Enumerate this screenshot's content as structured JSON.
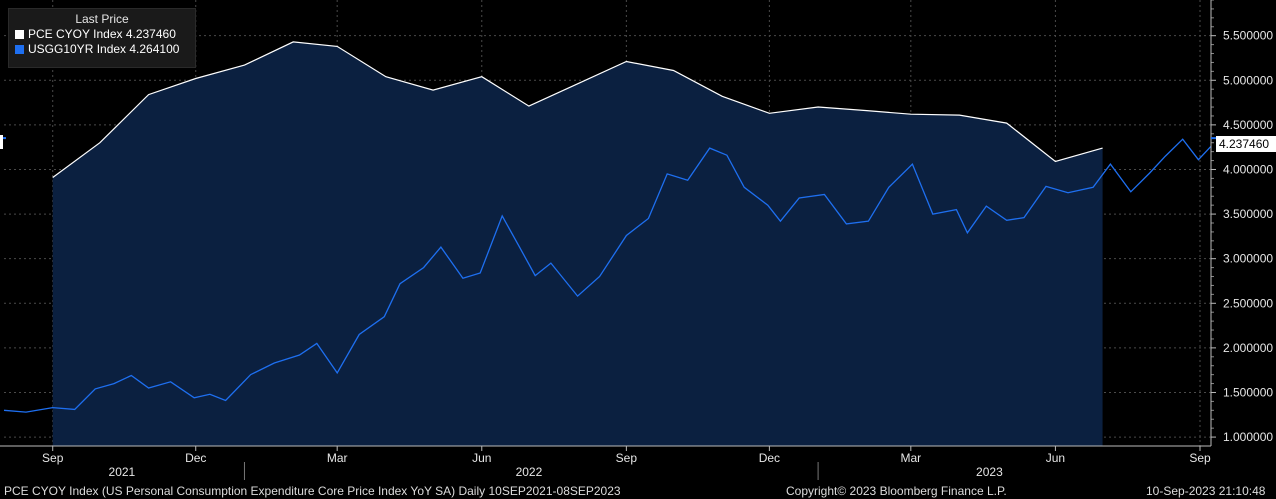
{
  "legend": {
    "title": "Last Price",
    "series": [
      {
        "label": "PCE CYOY Index  4.237460",
        "color": "#ffffff"
      },
      {
        "label": "USGG10YR Index  4.264100",
        "color": "#1e6ff0"
      }
    ]
  },
  "last_value_label": "4.237460",
  "footer": {
    "description": "PCE CYOY Index (US Personal Consumption Expenditure Core Price Index YoY SA)  Daily 10SEP2021-08SEP2023",
    "copyright": "Copyright© 2023 Bloomberg Finance L.P.",
    "timestamp": "10-Sep-2023 21:10:48"
  },
  "chart_data": {
    "type": "area",
    "xlim": [
      "2021-08-01",
      "2023-09-08"
    ],
    "ylim": [
      0.9,
      5.9
    ],
    "grid": true,
    "y_ticks": [
      1.0,
      1.5,
      2.0,
      2.5,
      3.0,
      3.5,
      4.0,
      4.5,
      5.0,
      5.5
    ],
    "y_tick_labels": [
      "1.000000",
      "1.500000",
      "2.000000",
      "2.500000",
      "3.000000",
      "3.500000",
      "4.000000",
      "4.500000",
      "5.000000",
      "5.500000"
    ],
    "month_ticks": [
      {
        "date": "2021-09-01",
        "label": "Sep"
      },
      {
        "date": "2021-12-01",
        "label": "Dec"
      },
      {
        "date": "2022-03-01",
        "label": "Mar"
      },
      {
        "date": "2022-06-01",
        "label": "Jun"
      },
      {
        "date": "2022-09-01",
        "label": "Sep"
      },
      {
        "date": "2022-12-01",
        "label": "Dec"
      },
      {
        "date": "2023-03-01",
        "label": "Mar"
      },
      {
        "date": "2023-06-01",
        "label": "Jun"
      },
      {
        "date": "2023-09-01",
        "label": "Sep"
      }
    ],
    "year_labels": [
      {
        "date": "2021-10-15",
        "label": "2021"
      },
      {
        "date": "2022-07-01",
        "label": "2022"
      },
      {
        "date": "2023-04-20",
        "label": "2023"
      }
    ],
    "year_separators": [
      "2022-01-01",
      "2023-01-01"
    ],
    "series": [
      {
        "name": "PCE CYOY Index",
        "color": "#ffffff",
        "fill": "#0b2040",
        "points": [
          [
            "2021-09-01",
            3.91
          ],
          [
            "2021-10-01",
            4.3
          ],
          [
            "2021-11-01",
            4.84
          ],
          [
            "2021-12-01",
            5.02
          ],
          [
            "2022-01-01",
            5.17
          ],
          [
            "2022-02-01",
            5.43
          ],
          [
            "2022-03-01",
            5.38
          ],
          [
            "2022-04-01",
            5.04
          ],
          [
            "2022-05-01",
            4.89
          ],
          [
            "2022-06-01",
            5.04
          ],
          [
            "2022-07-01",
            4.71
          ],
          [
            "2022-08-01",
            4.96
          ],
          [
            "2022-09-01",
            5.21
          ],
          [
            "2022-10-01",
            5.11
          ],
          [
            "2022-11-01",
            4.82
          ],
          [
            "2022-12-01",
            4.63
          ],
          [
            "2023-01-01",
            4.7
          ],
          [
            "2023-02-01",
            4.66
          ],
          [
            "2023-03-01",
            4.62
          ],
          [
            "2023-04-01",
            4.61
          ],
          [
            "2023-05-01",
            4.52
          ],
          [
            "2023-06-01",
            4.09
          ],
          [
            "2023-07-01",
            4.24
          ]
        ]
      },
      {
        "name": "USGG10YR Index",
        "color": "#1e6ff0",
        "points": [
          [
            "2021-08-01",
            1.3
          ],
          [
            "2021-08-15",
            1.28
          ],
          [
            "2021-09-01",
            1.33
          ],
          [
            "2021-09-15",
            1.31
          ],
          [
            "2021-09-28",
            1.54
          ],
          [
            "2021-10-10",
            1.6
          ],
          [
            "2021-10-21",
            1.69
          ],
          [
            "2021-11-01",
            1.55
          ],
          [
            "2021-11-15",
            1.62
          ],
          [
            "2021-11-30",
            1.44
          ],
          [
            "2021-12-10",
            1.48
          ],
          [
            "2021-12-20",
            1.41
          ],
          [
            "2022-01-05",
            1.7
          ],
          [
            "2022-01-20",
            1.83
          ],
          [
            "2022-02-05",
            1.92
          ],
          [
            "2022-02-16",
            2.05
          ],
          [
            "2022-03-01",
            1.72
          ],
          [
            "2022-03-15",
            2.15
          ],
          [
            "2022-03-31",
            2.35
          ],
          [
            "2022-04-10",
            2.72
          ],
          [
            "2022-04-25",
            2.9
          ],
          [
            "2022-05-06",
            3.13
          ],
          [
            "2022-05-20",
            2.78
          ],
          [
            "2022-05-31",
            2.84
          ],
          [
            "2022-06-14",
            3.48
          ],
          [
            "2022-06-25",
            3.13
          ],
          [
            "2022-07-05",
            2.81
          ],
          [
            "2022-07-15",
            2.95
          ],
          [
            "2022-08-01",
            2.58
          ],
          [
            "2022-08-15",
            2.8
          ],
          [
            "2022-09-01",
            3.26
          ],
          [
            "2022-09-15",
            3.45
          ],
          [
            "2022-09-27",
            3.95
          ],
          [
            "2022-10-10",
            3.88
          ],
          [
            "2022-10-24",
            4.24
          ],
          [
            "2022-11-04",
            4.16
          ],
          [
            "2022-11-15",
            3.8
          ],
          [
            "2022-11-30",
            3.6
          ],
          [
            "2022-12-08",
            3.42
          ],
          [
            "2022-12-20",
            3.68
          ],
          [
            "2023-01-05",
            3.72
          ],
          [
            "2023-01-19",
            3.39
          ],
          [
            "2023-02-02",
            3.42
          ],
          [
            "2023-02-15",
            3.8
          ],
          [
            "2023-03-02",
            4.06
          ],
          [
            "2023-03-15",
            3.5
          ],
          [
            "2023-03-30",
            3.55
          ],
          [
            "2023-04-06",
            3.29
          ],
          [
            "2023-04-18",
            3.59
          ],
          [
            "2023-05-01",
            3.43
          ],
          [
            "2023-05-12",
            3.46
          ],
          [
            "2023-05-26",
            3.81
          ],
          [
            "2023-06-09",
            3.74
          ],
          [
            "2023-06-25",
            3.8
          ],
          [
            "2023-07-06",
            4.06
          ],
          [
            "2023-07-19",
            3.75
          ],
          [
            "2023-07-31",
            3.96
          ],
          [
            "2023-08-10",
            4.15
          ],
          [
            "2023-08-21",
            4.34
          ],
          [
            "2023-08-31",
            4.11
          ],
          [
            "2023-09-08",
            4.26
          ]
        ]
      }
    ]
  }
}
